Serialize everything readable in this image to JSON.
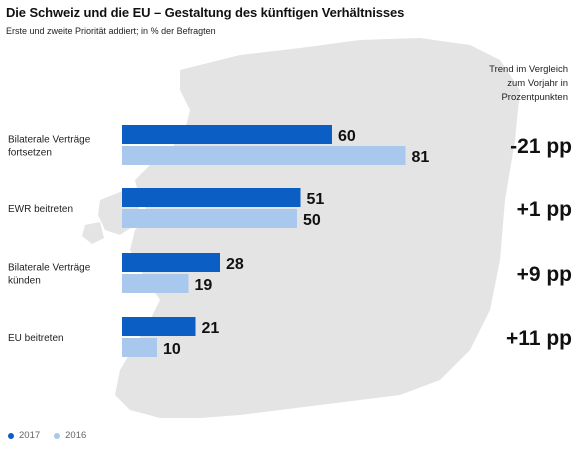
{
  "title": "Die Schweiz und die EU – Gestaltung des künftigen Verhältnisses",
  "subtitle": "Erste und zweite Priorität addiert; in % der Befragten",
  "trend_header": [
    "Trend im Vergleich",
    "zum Vorjahr in",
    "Prozentpunkten"
  ],
  "colors": {
    "2017": "#0b5fc4",
    "2016": "#a9c8ee",
    "map": "#e4e4e4"
  },
  "legend": [
    {
      "label": "2017",
      "color": "#0b5fc4"
    },
    {
      "label": "2016",
      "color": "#a9c8ee"
    }
  ],
  "chart_data": {
    "type": "bar",
    "orientation": "horizontal",
    "categories": [
      [
        "Bilaterale Verträge",
        "fortsetzen"
      ],
      [
        "EWR beitreten"
      ],
      [
        "Bilaterale Verträge",
        "künden"
      ],
      [
        "EU beitreten"
      ]
    ],
    "series": [
      {
        "name": "2017",
        "values": [
          60,
          51,
          28,
          21
        ]
      },
      {
        "name": "2016",
        "values": [
          81,
          50,
          19,
          10
        ]
      }
    ],
    "trend": [
      "-21 pp",
      "+1 pp",
      "+9 pp",
      "+11 pp"
    ],
    "xlim": [
      0,
      100
    ],
    "legend_position": "bottom-left",
    "grid": false
  }
}
